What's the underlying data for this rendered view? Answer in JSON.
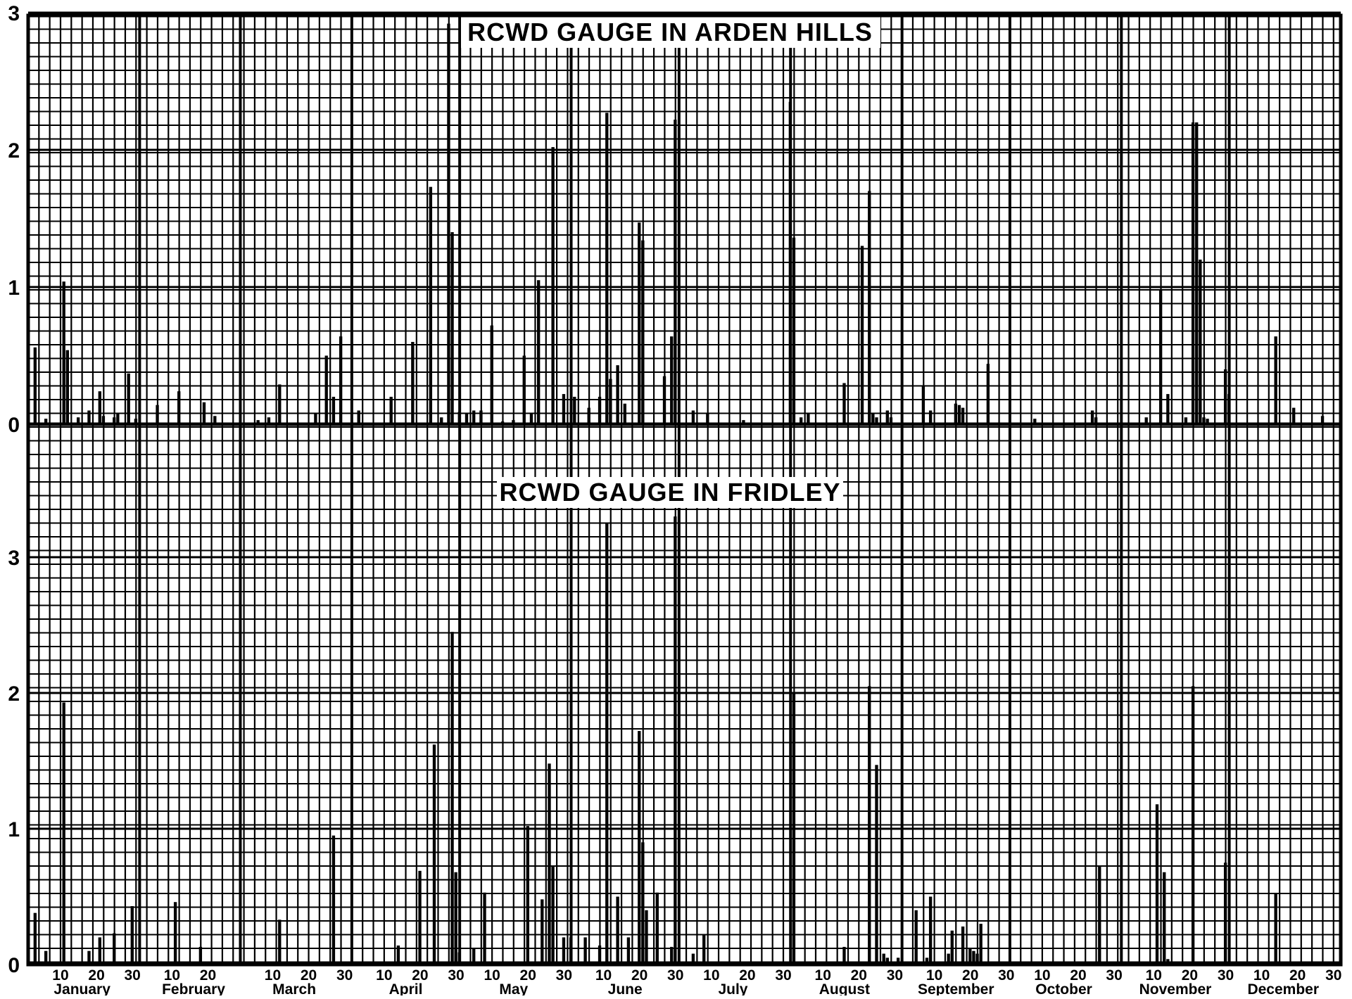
{
  "colors": {
    "ink": "#000000",
    "paper": "#ffffff"
  },
  "chart_data": [
    {
      "type": "bar",
      "title": "RCWD GAUGE IN ARDEN HILLS",
      "xlabel": "",
      "ylabel": "",
      "y_ticks": [
        "0",
        "1",
        "2",
        "3"
      ],
      "ylim": [
        0,
        3
      ],
      "grid": true,
      "x_unit": "day of year",
      "bars": [
        {
          "day": 2,
          "value": 0.56
        },
        {
          "day": 5,
          "value": 0.04
        },
        {
          "day": 10,
          "value": 1.04
        },
        {
          "day": 11,
          "value": 0.54
        },
        {
          "day": 14,
          "value": 0.05
        },
        {
          "day": 17,
          "value": 0.1
        },
        {
          "day": 20,
          "value": 0.24
        },
        {
          "day": 21,
          "value": 0.06
        },
        {
          "day": 24,
          "value": 0.05
        },
        {
          "day": 25,
          "value": 0.08
        },
        {
          "day": 28,
          "value": 0.37
        },
        {
          "day": 30,
          "value": 0.04
        },
        {
          "day": 36,
          "value": 0.14
        },
        {
          "day": 42,
          "value": 0.24
        },
        {
          "day": 49,
          "value": 0.16
        },
        {
          "day": 52,
          "value": 0.06
        },
        {
          "day": 64,
          "value": 0.03
        },
        {
          "day": 67,
          "value": 0.05
        },
        {
          "day": 70,
          "value": 0.29
        },
        {
          "day": 80,
          "value": 0.08
        },
        {
          "day": 83,
          "value": 0.5
        },
        {
          "day": 85,
          "value": 0.2
        },
        {
          "day": 87,
          "value": 0.64
        },
        {
          "day": 92,
          "value": 0.1
        },
        {
          "day": 101,
          "value": 0.2
        },
        {
          "day": 107,
          "value": 0.6
        },
        {
          "day": 112,
          "value": 1.73
        },
        {
          "day": 115,
          "value": 0.05
        },
        {
          "day": 117,
          "value": 2.92
        },
        {
          "day": 118,
          "value": 1.4
        },
        {
          "day": 120,
          "value": 0.09
        },
        {
          "day": 122,
          "value": 0.08
        },
        {
          "day": 124,
          "value": 0.1
        },
        {
          "day": 126,
          "value": 0.1
        },
        {
          "day": 129,
          "value": 0.72
        },
        {
          "day": 132,
          "value": 0.02
        },
        {
          "day": 135,
          "value": 0.03
        },
        {
          "day": 138,
          "value": 0.5
        },
        {
          "day": 140,
          "value": 0.08
        },
        {
          "day": 142,
          "value": 1.05
        },
        {
          "day": 146,
          "value": 2.02
        },
        {
          "day": 149,
          "value": 0.22
        },
        {
          "day": 152,
          "value": 0.2
        },
        {
          "day": 156,
          "value": 0.12
        },
        {
          "day": 159,
          "value": 0.2
        },
        {
          "day": 161,
          "value": 2.27
        },
        {
          "day": 162,
          "value": 0.33
        },
        {
          "day": 164,
          "value": 0.43
        },
        {
          "day": 166,
          "value": 0.15
        },
        {
          "day": 170,
          "value": 1.47
        },
        {
          "day": 171,
          "value": 1.34
        },
        {
          "day": 177,
          "value": 0.35
        },
        {
          "day": 179,
          "value": 0.64
        },
        {
          "day": 180,
          "value": 2.22
        },
        {
          "day": 185,
          "value": 0.1
        },
        {
          "day": 189,
          "value": 0.08
        },
        {
          "day": 199,
          "value": 0.03
        },
        {
          "day": 212,
          "value": 2.35
        },
        {
          "day": 213,
          "value": 1.36
        },
        {
          "day": 215,
          "value": 0.05
        },
        {
          "day": 217,
          "value": 0.08
        },
        {
          "day": 227,
          "value": 0.3
        },
        {
          "day": 232,
          "value": 1.3
        },
        {
          "day": 234,
          "value": 1.7
        },
        {
          "day": 235,
          "value": 0.08
        },
        {
          "day": 236,
          "value": 0.05
        },
        {
          "day": 239,
          "value": 0.1
        },
        {
          "day": 240,
          "value": 0.05
        },
        {
          "day": 249,
          "value": 0.28
        },
        {
          "day": 251,
          "value": 0.1
        },
        {
          "day": 258,
          "value": 0.15
        },
        {
          "day": 259,
          "value": 0.14
        },
        {
          "day": 260,
          "value": 0.12
        },
        {
          "day": 267,
          "value": 0.44
        },
        {
          "day": 280,
          "value": 0.04
        },
        {
          "day": 296,
          "value": 0.1
        },
        {
          "day": 297,
          "value": 0.05
        },
        {
          "day": 311,
          "value": 0.05
        },
        {
          "day": 315,
          "value": 0.98
        },
        {
          "day": 317,
          "value": 0.22
        },
        {
          "day": 322,
          "value": 0.05
        },
        {
          "day": 324,
          "value": 2.2
        },
        {
          "day": 325,
          "value": 2.2
        },
        {
          "day": 326,
          "value": 1.2
        },
        {
          "day": 327,
          "value": 0.05
        },
        {
          "day": 328,
          "value": 0.04
        },
        {
          "day": 333,
          "value": 0.4
        },
        {
          "day": 334,
          "value": 0.22
        },
        {
          "day": 347,
          "value": 0.64
        },
        {
          "day": 352,
          "value": 0.12
        },
        {
          "day": 360,
          "value": 0.06
        }
      ]
    },
    {
      "type": "bar",
      "title": "RCWD GAUGE IN FRIDLEY",
      "xlabel": "",
      "ylabel": "",
      "y_ticks": [
        "0",
        "1",
        "2",
        "3"
      ],
      "ylim": [
        0,
        3.3
      ],
      "grid": true,
      "x_unit": "day of year",
      "bars": [
        {
          "day": 2,
          "value": 0.38
        },
        {
          "day": 5,
          "value": 0.1
        },
        {
          "day": 10,
          "value": 1.93
        },
        {
          "day": 17,
          "value": 0.1
        },
        {
          "day": 20,
          "value": 0.2
        },
        {
          "day": 24,
          "value": 0.23
        },
        {
          "day": 29,
          "value": 0.43
        },
        {
          "day": 41,
          "value": 0.46
        },
        {
          "day": 48,
          "value": 0.13
        },
        {
          "day": 70,
          "value": 0.33
        },
        {
          "day": 85,
          "value": 0.95
        },
        {
          "day": 103,
          "value": 0.14
        },
        {
          "day": 109,
          "value": 0.69
        },
        {
          "day": 113,
          "value": 1.62
        },
        {
          "day": 118,
          "value": 2.45
        },
        {
          "day": 119,
          "value": 0.68
        },
        {
          "day": 120,
          "value": 0.09
        },
        {
          "day": 124,
          "value": 0.12
        },
        {
          "day": 127,
          "value": 0.53
        },
        {
          "day": 139,
          "value": 1.02
        },
        {
          "day": 143,
          "value": 0.48
        },
        {
          "day": 145,
          "value": 1.48
        },
        {
          "day": 146,
          "value": 0.72
        },
        {
          "day": 149,
          "value": 0.2
        },
        {
          "day": 151,
          "value": 0.2
        },
        {
          "day": 155,
          "value": 0.2
        },
        {
          "day": 159,
          "value": 0.14
        },
        {
          "day": 161,
          "value": 3.25
        },
        {
          "day": 164,
          "value": 0.5
        },
        {
          "day": 167,
          "value": 0.2
        },
        {
          "day": 170,
          "value": 1.72
        },
        {
          "day": 171,
          "value": 0.9
        },
        {
          "day": 172,
          "value": 0.4
        },
        {
          "day": 175,
          "value": 0.53
        },
        {
          "day": 179,
          "value": 0.13
        },
        {
          "day": 180,
          "value": 3.3
        },
        {
          "day": 185,
          "value": 0.08
        },
        {
          "day": 188,
          "value": 0.22
        },
        {
          "day": 213,
          "value": 2.0
        },
        {
          "day": 227,
          "value": 0.13
        },
        {
          "day": 234,
          "value": 2.05
        },
        {
          "day": 236,
          "value": 1.47
        },
        {
          "day": 238,
          "value": 0.08
        },
        {
          "day": 239,
          "value": 0.05
        },
        {
          "day": 242,
          "value": 0.05
        },
        {
          "day": 247,
          "value": 0.4
        },
        {
          "day": 250,
          "value": 0.05
        },
        {
          "day": 251,
          "value": 0.5
        },
        {
          "day": 256,
          "value": 0.08
        },
        {
          "day": 257,
          "value": 0.25
        },
        {
          "day": 260,
          "value": 0.28
        },
        {
          "day": 262,
          "value": 0.12
        },
        {
          "day": 263,
          "value": 0.1
        },
        {
          "day": 264,
          "value": 0.08
        },
        {
          "day": 265,
          "value": 0.3
        },
        {
          "day": 298,
          "value": 0.73
        },
        {
          "day": 314,
          "value": 1.18
        },
        {
          "day": 316,
          "value": 0.68
        },
        {
          "day": 317,
          "value": 0.04
        },
        {
          "day": 324,
          "value": 2.05
        },
        {
          "day": 333,
          "value": 0.75
        },
        {
          "day": 347,
          "value": 0.52
        }
      ]
    }
  ],
  "months": [
    {
      "name": "January",
      "start": 0,
      "days": 31,
      "ticks": [
        "10",
        "20",
        "30"
      ]
    },
    {
      "name": "February",
      "start": 31,
      "days": 28,
      "ticks": [
        "10",
        "20"
      ]
    },
    {
      "name": "March",
      "start": 59,
      "days": 31,
      "ticks": [
        "10",
        "20",
        "30"
      ]
    },
    {
      "name": "April",
      "start": 90,
      "days": 30,
      "ticks": [
        "10",
        "20",
        "30"
      ]
    },
    {
      "name": "May",
      "start": 120,
      "days": 31,
      "ticks": [
        "10",
        "20",
        "30"
      ]
    },
    {
      "name": "June",
      "start": 151,
      "days": 30,
      "ticks": [
        "10",
        "20",
        "30"
      ]
    },
    {
      "name": "July",
      "start": 181,
      "days": 31,
      "ticks": [
        "10",
        "20",
        "30"
      ]
    },
    {
      "name": "August",
      "start": 212,
      "days": 31,
      "ticks": [
        "10",
        "20",
        "30"
      ]
    },
    {
      "name": "September",
      "start": 243,
      "days": 30,
      "ticks": [
        "10",
        "20",
        "30"
      ]
    },
    {
      "name": "October",
      "start": 273,
      "days": 31,
      "ticks": [
        "10",
        "20",
        "30"
      ]
    },
    {
      "name": "November",
      "start": 304,
      "days": 30,
      "ticks": [
        "10",
        "20",
        "30"
      ]
    },
    {
      "name": "December",
      "start": 334,
      "days": 31,
      "ticks": [
        "10",
        "20",
        "30"
      ]
    }
  ]
}
